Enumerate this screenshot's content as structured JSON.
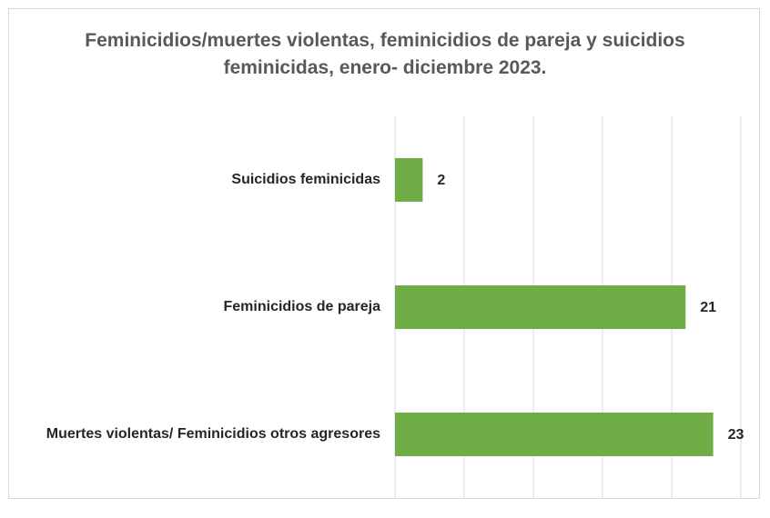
{
  "chart_data": {
    "type": "bar",
    "orientation": "horizontal",
    "title": "Feminicidios/muertes violentas, feminicidios de pareja y suicidios feminicidas, enero- diciembre 2023.",
    "categories": [
      "Suicidios feminicidas",
      "Feminicidios de pareja",
      "Muertes violentas/ Feminicidios otros agresores"
    ],
    "values": [
      2,
      21,
      23
    ],
    "color": "#70ad47",
    "xlim": [
      0,
      25
    ],
    "xticks": [
      0,
      5,
      10,
      15,
      20,
      25
    ],
    "grid": true
  }
}
